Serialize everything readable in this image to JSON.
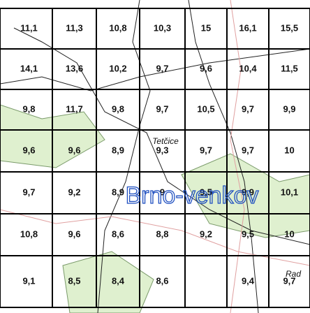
{
  "grid": {
    "rows": [
      [
        "11,1",
        "11,3",
        "10,8",
        "10,3",
        "15",
        "16,1",
        "15,5"
      ],
      [
        "14,1",
        "13,6",
        "10,2",
        "9,7",
        "9,6",
        "10,4",
        "11,5"
      ],
      [
        "9,8",
        "11,7",
        "9,8",
        "9,7",
        "10,5",
        "9,7",
        "9,9"
      ],
      [
        "9,6",
        "9,6",
        "8,9",
        "9,3",
        "9,7",
        "9,7",
        "10"
      ],
      [
        "9,7",
        "9,2",
        "8,9",
        "9",
        "9,5",
        "9,9",
        "10,1"
      ],
      [
        "10,8",
        "9,6",
        "8,6",
        "8,8",
        "9,2",
        "9,5",
        "10"
      ],
      [
        "9,1",
        "8,5",
        "8,4",
        "8,6",
        null,
        "9,4",
        "9,7"
      ]
    ]
  },
  "labels": {
    "district": "Brno-venkov",
    "village": "Tetčice",
    "edge": "Rad"
  }
}
